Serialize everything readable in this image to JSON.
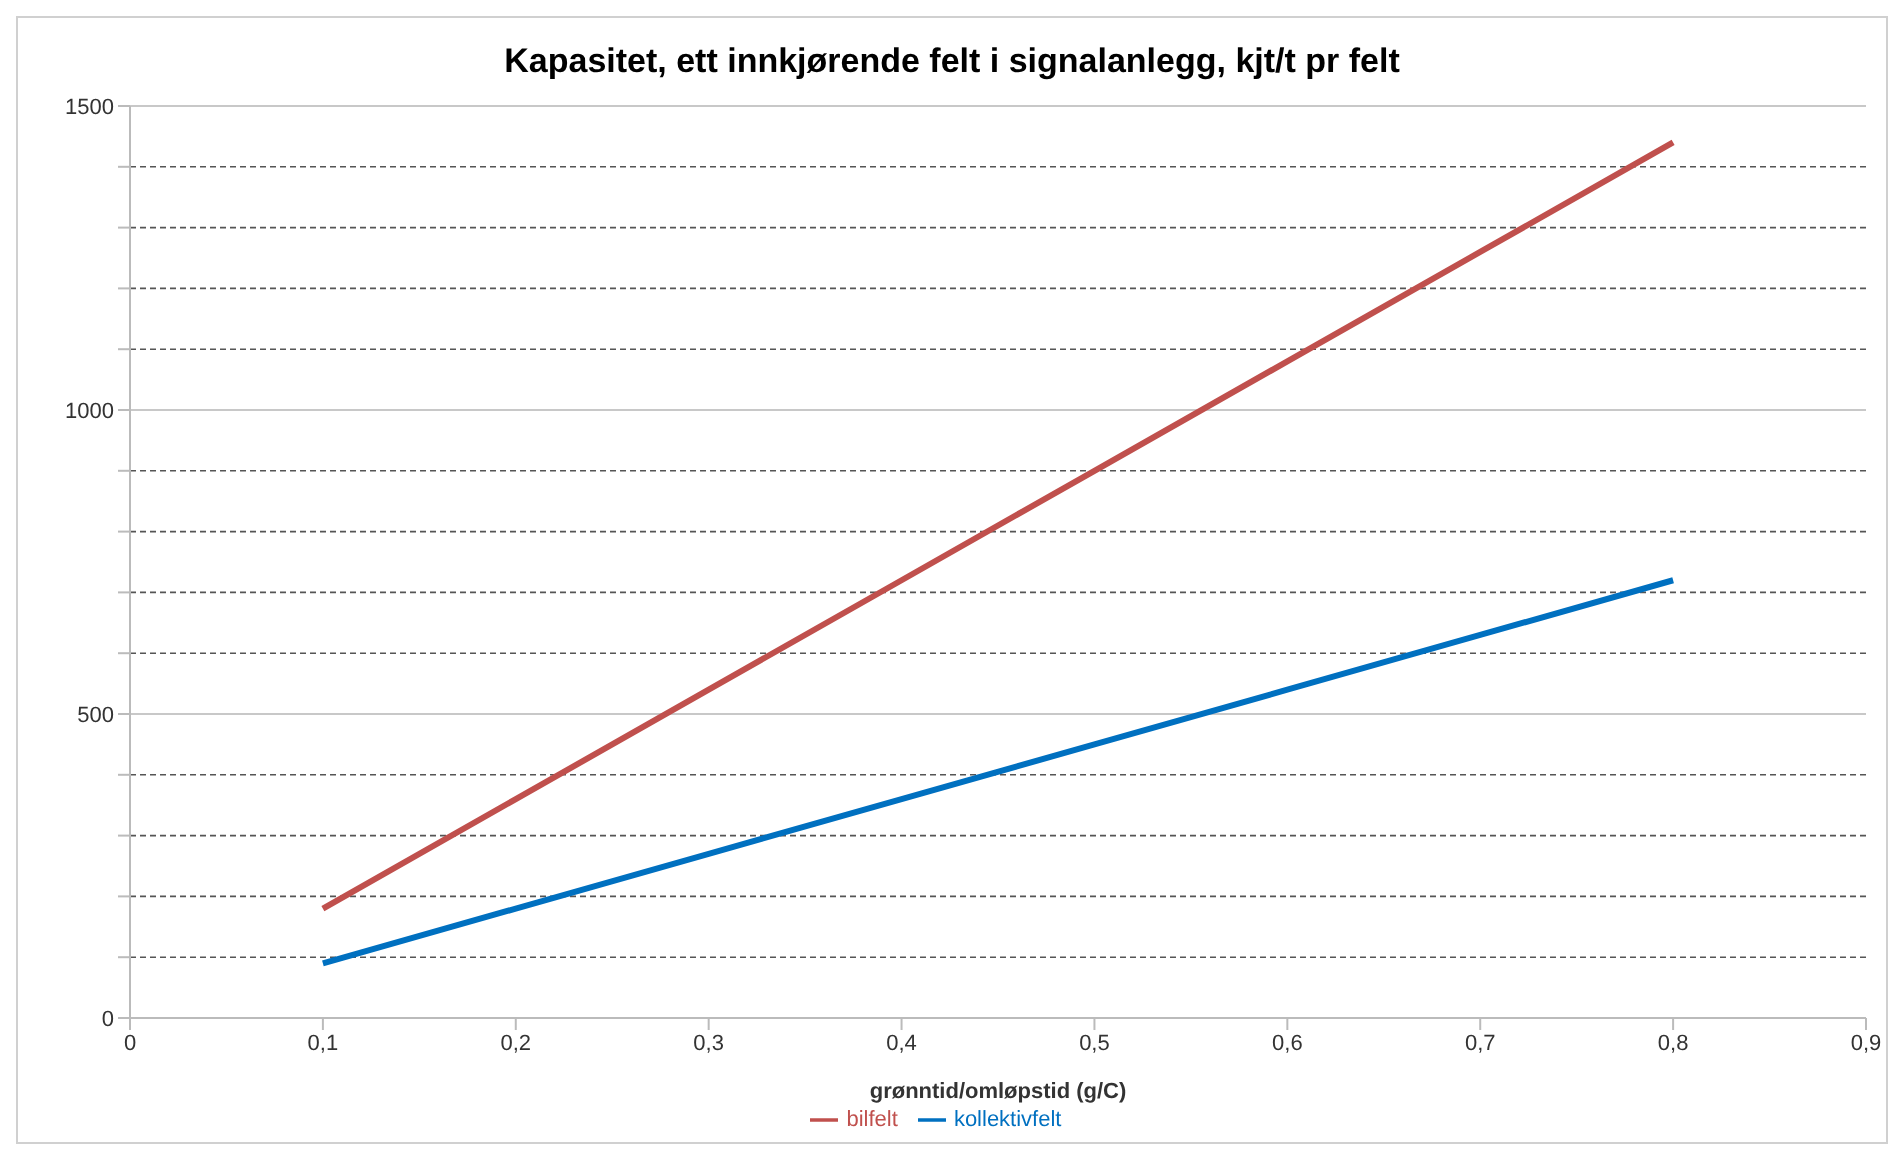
{
  "chart_data": {
    "type": "line",
    "title": "Kapasitet, ett innkjørende felt i signalanlegg, kjt/t pr felt",
    "xlabel": "grønntid/omløpstid (g/C)",
    "x": [
      0.1,
      0.2,
      0.3,
      0.4,
      0.5,
      0.6,
      0.7,
      0.8
    ],
    "series": [
      {
        "name": "bilfelt",
        "color": "#c0504d",
        "values": [
          180,
          360,
          540,
          720,
          900,
          1080,
          1260,
          1440
        ]
      },
      {
        "name": "kollektivfelt",
        "color": "#0070c0",
        "values": [
          90,
          180,
          270,
          360,
          450,
          540,
          630,
          720
        ]
      }
    ],
    "xlim": [
      0,
      0.9
    ],
    "xticks": [
      {
        "value": 0,
        "label": "0"
      },
      {
        "value": 0.1,
        "label": "0,1"
      },
      {
        "value": 0.2,
        "label": "0,2"
      },
      {
        "value": 0.3,
        "label": "0,3"
      },
      {
        "value": 0.4,
        "label": "0,4"
      },
      {
        "value": 0.5,
        "label": "0,5"
      },
      {
        "value": 0.6,
        "label": "0,6"
      },
      {
        "value": 0.7,
        "label": "0,7"
      },
      {
        "value": 0.8,
        "label": "0,8"
      },
      {
        "value": 0.9,
        "label": "0,9"
      }
    ],
    "ylim": [
      0,
      1500
    ],
    "yticks": [
      0,
      {
        "value": 100,
        "label": null
      },
      {
        "value": 200,
        "label": null
      },
      {
        "value": 300,
        "label": null
      },
      {
        "value": 400,
        "label": null
      },
      500,
      {
        "value": 600,
        "label": null
      },
      {
        "value": 700,
        "label": null
      },
      {
        "value": 800,
        "label": null
      },
      {
        "value": 900,
        "label": null
      },
      1000,
      {
        "value": 1100,
        "label": null
      },
      {
        "value": 1200,
        "label": null
      },
      {
        "value": 1300,
        "label": null
      },
      {
        "value": 1400,
        "label": null
      },
      1500
    ],
    "grid": "y",
    "legend": "bottom",
    "marker": "none",
    "line_style": "solid"
  }
}
